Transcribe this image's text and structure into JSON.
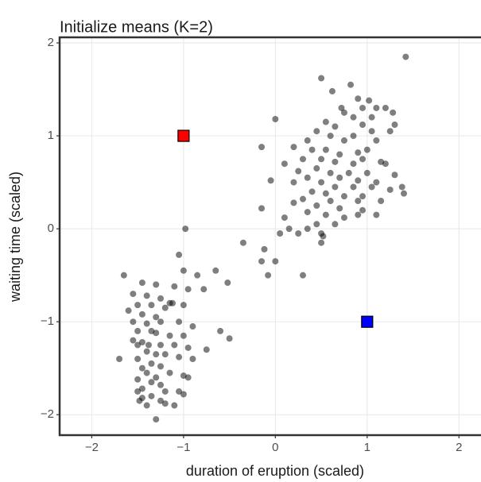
{
  "chart_data": {
    "type": "scatter",
    "title": "Initialize means (K=2)",
    "xlabel": "duration of eruption (scaled)",
    "ylabel": "waiting time (scaled)",
    "xlim": [
      -2.35,
      2.24
    ],
    "ylim": [
      -2.22,
      2.06
    ],
    "xticks": [
      {
        "value": -2,
        "label": "−2"
      },
      {
        "value": -1,
        "label": "−1"
      },
      0,
      1,
      2
    ],
    "yticks": [
      {
        "value": -2,
        "label": "−2"
      },
      {
        "value": -1,
        "label": "−1"
      },
      0,
      1,
      2
    ],
    "grid": true,
    "series": [
      {
        "color": "#000000",
        "opacity": 0.5,
        "marker": "circle",
        "x": [
          1.42,
          0.5,
          0.82,
          0.62,
          0.9,
          1.02,
          0.72,
          0.75,
          0.95,
          1.1,
          1.2,
          1.28,
          0.85,
          1.05,
          0.0,
          0.55,
          0.65,
          1.3,
          0.95,
          1.25,
          0.45,
          0.6,
          0.85,
          1.05,
          1.1,
          0.35,
          0.75,
          0.2,
          -0.15,
          0.4,
          0.55,
          0.9,
          1.0,
          0.7,
          0.95,
          0.3,
          0.5,
          0.65,
          0.85,
          1.15,
          1.2,
          0.1,
          0.45,
          0.25,
          0.6,
          0.8,
          1.0,
          0.7,
          1.3,
          0.35,
          0.9,
          1.1,
          0.2,
          0.5,
          -0.05,
          0.65,
          0.85,
          1.05,
          1.25,
          1.38,
          0.4,
          0.55,
          0.75,
          0.95,
          1.4,
          0.3,
          0.6,
          0.9,
          1.15,
          0.2,
          0.45,
          0.7,
          0.95,
          -0.15,
          0.35,
          0.55,
          0.75,
          0.9,
          1.1,
          0.1,
          0.45,
          0.65,
          0.05,
          0.15,
          0.35,
          0.5,
          0.52,
          0.25,
          -0.35,
          -0.12,
          0.5,
          -0.15,
          0.0,
          -0.08,
          0.3,
          -0.98,
          -1.05,
          -1.0,
          -0.85,
          -0.65,
          -0.52,
          -1.65,
          -1.45,
          -1.3,
          -1.1,
          -0.95,
          -0.78,
          -1.55,
          -1.4,
          -1.25,
          -1.15,
          -1.12,
          -1.5,
          -1.35,
          -1.2,
          -1.0,
          -1.6,
          -1.45,
          -1.3,
          -1.55,
          -1.4,
          -1.25,
          -1.05,
          -0.9,
          -1.5,
          -1.35,
          -1.3,
          -1.15,
          -1.0,
          -0.6,
          -0.5,
          -1.55,
          -1.45,
          -1.38,
          -1.25,
          -1.5,
          -1.1,
          -0.95,
          -0.75,
          -1.4,
          -1.3,
          -1.2,
          -1.5,
          -1.7,
          -1.05,
          -0.9,
          -1.35,
          -1.25,
          -1.45,
          -1.4,
          -1.15,
          -1.3,
          -1.0,
          -0.95,
          -1.5,
          -1.35,
          -1.25,
          -1.45,
          -1.5,
          -1.2,
          -1.05,
          -1.35,
          -1.45,
          -1.48,
          -1.25,
          -1.0,
          -1.4,
          -1.1,
          -1.3,
          -1.2
        ],
        "values": [
          1.85,
          1.62,
          1.55,
          1.48,
          1.4,
          1.38,
          1.3,
          1.25,
          1.3,
          1.3,
          1.3,
          1.25,
          1.2,
          1.2,
          1.18,
          1.15,
          1.1,
          1.12,
          1.12,
          1.05,
          1.05,
          1.0,
          1.0,
          1.05,
          0.95,
          0.95,
          0.95,
          0.88,
          0.88,
          0.85,
          0.85,
          0.82,
          0.85,
          0.8,
          0.75,
          0.75,
          0.75,
          0.72,
          0.7,
          0.72,
          0.7,
          0.7,
          0.65,
          0.62,
          0.6,
          0.6,
          0.6,
          0.55,
          0.58,
          0.55,
          0.52,
          0.5,
          0.5,
          0.5,
          0.52,
          0.45,
          0.45,
          0.45,
          0.42,
          0.45,
          0.4,
          0.38,
          0.35,
          0.35,
          0.38,
          0.32,
          0.3,
          0.3,
          0.3,
          0.28,
          0.25,
          0.22,
          0.2,
          0.22,
          0.18,
          0.15,
          0.12,
          0.15,
          0.15,
          0.12,
          0.05,
          0.05,
          -0.05,
          0.0,
          0.0,
          -0.05,
          -0.08,
          -0.05,
          -0.15,
          -0.22,
          -0.15,
          -0.35,
          -0.35,
          -0.5,
          -0.5,
          0.0,
          -0.28,
          -0.45,
          -0.5,
          -0.45,
          -0.58,
          -0.5,
          -0.58,
          -0.6,
          -0.62,
          -0.65,
          -0.65,
          -0.7,
          -0.72,
          -0.75,
          -0.8,
          -0.8,
          -0.82,
          -0.82,
          -0.85,
          -0.82,
          -0.88,
          -0.92,
          -0.95,
          -1.0,
          -1.02,
          -1.0,
          -1.0,
          -1.05,
          -1.1,
          -1.1,
          -1.12,
          -1.15,
          -1.15,
          -1.1,
          -1.18,
          -1.2,
          -1.22,
          -1.25,
          -1.25,
          -1.25,
          -1.25,
          -1.28,
          -1.3,
          -1.32,
          -1.35,
          -1.35,
          -1.4,
          -1.4,
          -1.38,
          -1.4,
          -1.45,
          -1.48,
          -1.5,
          -1.55,
          -1.55,
          -1.6,
          -1.58,
          -1.6,
          -1.62,
          -1.65,
          -1.68,
          -1.72,
          -1.75,
          -1.75,
          -1.75,
          -1.8,
          -1.82,
          -1.85,
          -1.85,
          -1.78,
          -1.9,
          -1.9,
          -2.05,
          -1.88
        ]
      },
      {
        "color": "#ff0000",
        "opacity": 1,
        "marker": "square",
        "x": [
          -1
        ],
        "values": [
          1
        ]
      },
      {
        "color": "#0000ff",
        "opacity": 1,
        "marker": "square",
        "x": [
          1
        ],
        "values": [
          -1
        ]
      }
    ]
  }
}
